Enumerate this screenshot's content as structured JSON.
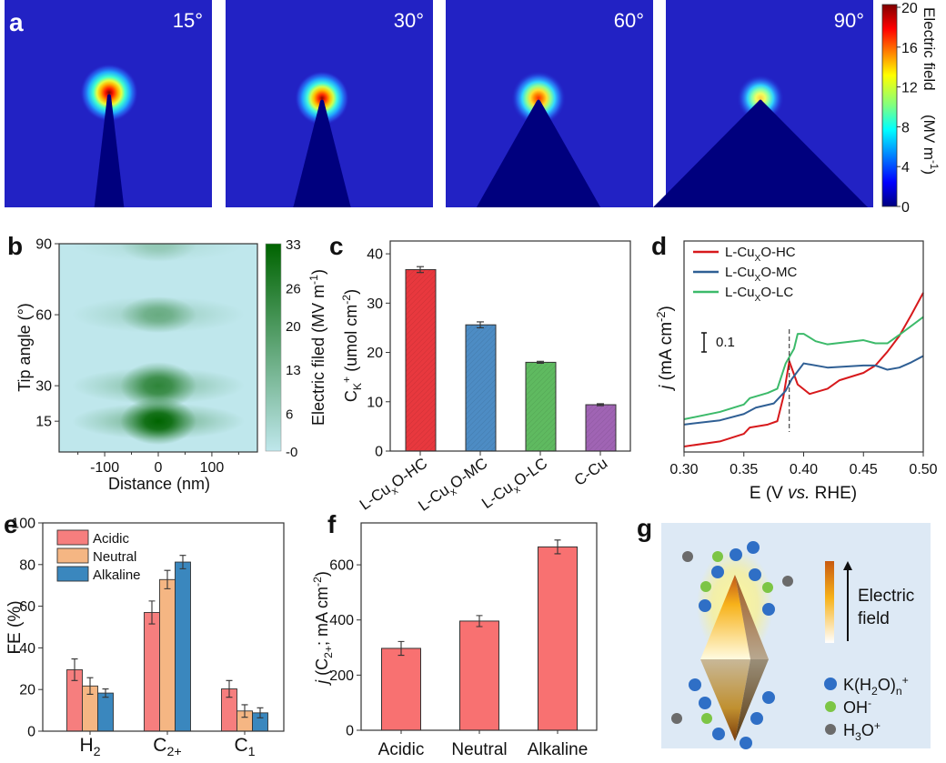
{
  "figure_labels": {
    "a": "a",
    "b": "b",
    "c": "c",
    "d": "d",
    "e": "e",
    "f": "f",
    "g": "g"
  },
  "panel_a": {
    "angles_deg": [
      15,
      30,
      60,
      90
    ],
    "angle_labels": [
      "15°",
      "30°",
      "60°",
      "90°"
    ],
    "colorbar": {
      "range": [
        0,
        20
      ],
      "tick_values": [
        0,
        4,
        8,
        12,
        16,
        20
      ],
      "tick_labels": [
        "0",
        "4",
        "8",
        "12",
        "16",
        "20"
      ],
      "title": "Electric field",
      "unit_parts": [
        {
          "t": "(MV m"
        },
        {
          "t": "-1",
          "k": "sup"
        },
        {
          "t": ")"
        }
      ]
    }
  },
  "chart_data": [
    {
      "id": "b",
      "type": "heatmap",
      "xlabel": "Distance (nm)",
      "ylabel": "Tip angle (°)",
      "xlim": [
        -185,
        185
      ],
      "ylim": [
        2,
        90
      ],
      "xticks": [
        -100,
        0,
        100
      ],
      "xtick_labels": [
        "-100",
        "0",
        "100"
      ],
      "yticks": [
        15,
        30,
        60,
        90
      ],
      "ytick_labels": [
        "15",
        "30",
        "60",
        "90"
      ],
      "colorbar": {
        "range": [
          0,
          33
        ],
        "ticks": [
          0,
          6,
          13,
          20,
          26,
          33
        ],
        "tick_labels": [
          "-0",
          "6",
          "13",
          "20",
          "26",
          "33"
        ],
        "label_parts": [
          {
            "t": "Electric filed (MV m"
          },
          {
            "t": "-1",
            "k": "sup"
          },
          {
            "t": ")"
          }
        ],
        "colors": [
          "#bfe7ec",
          "#006400"
        ]
      },
      "peaks": [
        {
          "angle": 15,
          "distance": 0,
          "value": 33
        },
        {
          "angle": 30,
          "distance": 0,
          "value": 25
        },
        {
          "angle": 60,
          "distance": 0,
          "value": 15
        },
        {
          "angle": 90,
          "distance": 0,
          "value": 8
        }
      ]
    },
    {
      "id": "c",
      "type": "bar",
      "categories": [
        [
          {
            "t": "L-Cu"
          },
          {
            "t": "x",
            "k": "sub"
          },
          {
            "t": "O-HC"
          }
        ],
        [
          {
            "t": "L-Cu"
          },
          {
            "t": "x",
            "k": "sub"
          },
          {
            "t": "O-MC"
          }
        ],
        [
          {
            "t": "L-Cu"
          },
          {
            "t": "x",
            "k": "sub"
          },
          {
            "t": "O-LC"
          }
        ],
        [
          {
            "t": "C-Cu"
          }
        ]
      ],
      "values": [
        36.8,
        25.6,
        18.0,
        9.4
      ],
      "errors": [
        0.6,
        0.6,
        0.2,
        0.2
      ],
      "colors": [
        "#e8383e",
        "#4d8cc4",
        "#5fba60",
        "#a064b4"
      ],
      "ylim": [
        0,
        42.6
      ],
      "yticks": [
        0,
        10,
        20,
        30,
        40
      ],
      "ytick_labels": [
        "0",
        "10",
        "20",
        "30",
        "40"
      ],
      "ylabel_parts": [
        {
          "t": "C"
        },
        {
          "t": "K",
          "k": "sub"
        },
        {
          "t": "+",
          "k": "sup"
        },
        {
          "t": " (umol cm"
        },
        {
          "t": "-2",
          "k": "sup"
        },
        {
          "t": ")"
        }
      ]
    },
    {
      "id": "d",
      "type": "line",
      "xlim": [
        0.3,
        0.5
      ],
      "ylim": [
        0,
        1
      ],
      "xticks": [
        0.3,
        0.35,
        0.4,
        0.45,
        0.5
      ],
      "xtick_labels": [
        "0.30",
        "0.35",
        "0.40",
        "0.45",
        "0.50"
      ],
      "xlabel_parts": [
        {
          "t": "E (V "
        },
        {
          "t": "vs.",
          "k": "i"
        },
        {
          "t": " RHE)"
        }
      ],
      "ylabel_parts": [
        {
          "t": "j",
          "k": "i"
        },
        {
          "t": " (mA cm"
        },
        {
          "t": "-2",
          "k": "sup"
        },
        {
          "t": ")"
        }
      ],
      "scale_bar": {
        "value": 0.1,
        "label": "0.1"
      },
      "dashed_line_x": 0.388,
      "series": [
        {
          "name_parts": [
            {
              "t": "L-Cu"
            },
            {
              "t": "X",
              "k": "sub"
            },
            {
              "t": "O-HC"
            }
          ],
          "color": "#d7191c",
          "x": [
            0.3,
            0.33,
            0.35,
            0.355,
            0.37,
            0.378,
            0.383,
            0.388,
            0.395,
            0.405,
            0.42,
            0.43,
            0.45,
            0.46,
            0.47,
            0.48,
            0.49,
            0.5
          ],
          "y": [
            0.026,
            0.05,
            0.086,
            0.116,
            0.13,
            0.146,
            0.26,
            0.43,
            0.32,
            0.275,
            0.3,
            0.34,
            0.375,
            0.41,
            0.475,
            0.55,
            0.65,
            0.755
          ]
        },
        {
          "name_parts": [
            {
              "t": "L-Cu"
            },
            {
              "t": "X",
              "k": "sub"
            },
            {
              "t": "O-MC"
            }
          ],
          "color": "#2f5f94",
          "x": [
            0.3,
            0.33,
            0.35,
            0.36,
            0.375,
            0.385,
            0.39,
            0.4,
            0.42,
            0.45,
            0.46,
            0.47,
            0.48,
            0.49,
            0.5
          ],
          "y": [
            0.13,
            0.15,
            0.18,
            0.21,
            0.23,
            0.29,
            0.345,
            0.42,
            0.4,
            0.41,
            0.41,
            0.39,
            0.4,
            0.425,
            0.455
          ]
        },
        {
          "name_parts": [
            {
              "t": "L-Cu"
            },
            {
              "t": "X",
              "k": "sub"
            },
            {
              "t": "O-LC"
            }
          ],
          "color": "#3cba6a",
          "x": [
            0.3,
            0.33,
            0.35,
            0.355,
            0.37,
            0.378,
            0.385,
            0.392,
            0.395,
            0.4,
            0.41,
            0.42,
            0.45,
            0.46,
            0.47,
            0.48,
            0.5
          ],
          "y": [
            0.155,
            0.19,
            0.225,
            0.255,
            0.28,
            0.3,
            0.42,
            0.49,
            0.56,
            0.56,
            0.525,
            0.51,
            0.53,
            0.515,
            0.515,
            0.555,
            0.64
          ]
        }
      ]
    },
    {
      "id": "e",
      "type": "bar",
      "categories": [
        [
          {
            "t": "H"
          },
          {
            "t": "2",
            "k": "sub"
          }
        ],
        [
          {
            "t": "C"
          },
          {
            "t": "2+",
            "k": "sub"
          }
        ],
        [
          {
            "t": "C"
          },
          {
            "t": "1",
            "k": "sub"
          }
        ]
      ],
      "ylabel": "FE (%)",
      "ylim": [
        0,
        100
      ],
      "yticks": [
        0,
        20,
        40,
        60,
        80,
        100
      ],
      "ytick_labels": [
        "0",
        "20",
        "40",
        "60",
        "80",
        "100"
      ],
      "legend": "top-left",
      "series": [
        {
          "name": "Acidic",
          "color": "#f67e7e",
          "values": [
            29.5,
            57.0,
            20.3
          ],
          "errors": [
            5.2,
            5.5,
            4.0
          ]
        },
        {
          "name": "Neutral",
          "color": "#f5b683",
          "values": [
            21.7,
            72.8,
            9.7
          ],
          "errors": [
            4.0,
            4.4,
            3.0
          ]
        },
        {
          "name": "Alkaline",
          "color": "#3a87be",
          "values": [
            18.3,
            81.2,
            8.8
          ],
          "errors": [
            2.0,
            3.2,
            2.4
          ]
        }
      ]
    },
    {
      "id": "f",
      "type": "bar",
      "categories": [
        "Acidic",
        "Neutral",
        "Alkaline"
      ],
      "values": [
        297,
        396,
        665
      ],
      "errors": [
        25,
        20,
        25
      ],
      "color": "#f87171",
      "ylim": [
        0,
        752
      ],
      "yticks": [
        0,
        200,
        400,
        600
      ],
      "ytick_labels": [
        "0",
        "200",
        "400",
        "600"
      ],
      "ylabel_parts": [
        {
          "t": "j",
          "k": "i"
        },
        {
          "t": " (C"
        },
        {
          "t": "2+",
          "k": "sub"
        },
        {
          "t": "; mA cm"
        },
        {
          "t": "-2",
          "k": "sup"
        },
        {
          "t": ")"
        }
      ]
    }
  ],
  "panel_g": {
    "field_label_1": "Electric",
    "field_label_2": "field",
    "legend": [
      {
        "color": "#2f6fc6",
        "parts": [
          {
            "t": "K(H"
          },
          {
            "t": "2",
            "k": "sub"
          },
          {
            "t": "O)"
          },
          {
            "t": "n",
            "k": "sub"
          },
          {
            "t": "+",
            "k": "sup"
          }
        ]
      },
      {
        "color": "#7cc545",
        "parts": [
          {
            "t": "OH"
          },
          {
            "t": "-",
            "k": "sup"
          }
        ]
      },
      {
        "color": "#6b6b6b",
        "parts": [
          {
            "t": "H"
          },
          {
            "t": "3",
            "k": "sub"
          },
          {
            "t": "O"
          },
          {
            "t": "+",
            "k": "sup"
          }
        ]
      }
    ]
  }
}
